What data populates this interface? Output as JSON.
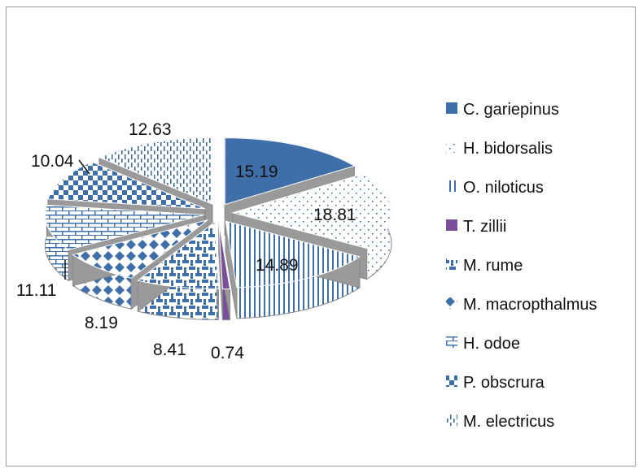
{
  "chart_data": {
    "type": "pie",
    "title": "",
    "style": "exploded-3d-patterned",
    "legend_position": "right",
    "data_labels": true,
    "slices": [
      {
        "name": "C. gariepinus",
        "value": 15.19,
        "color": "#3f6fa8",
        "pattern": "solid"
      },
      {
        "name": "H. bidorsalis",
        "value": 18.81,
        "color": "#3f6fa8",
        "pattern": "sparse-dots"
      },
      {
        "name": "O. niloticus",
        "value": 14.89,
        "color": "#3f6fa8",
        "pattern": "vertical-lines"
      },
      {
        "name": "T. zillii",
        "value": 0.74,
        "color": "#7a4f9a",
        "pattern": "solid"
      },
      {
        "name": "M. rume",
        "value": 8.41,
        "color": "#3f6fa8",
        "pattern": "weave"
      },
      {
        "name": "M. macropthalmus",
        "value": 8.19,
        "color": "#3f6fa8",
        "pattern": "diamonds"
      },
      {
        "name": "H. odoe",
        "value": 11.11,
        "color": "#3f6fa8",
        "pattern": "bricks"
      },
      {
        "name": "P. obscrura",
        "value": 10.04,
        "color": "#3f6fa8",
        "pattern": "checker"
      },
      {
        "name": "M. electricus",
        "value": 12.63,
        "color": "#3f6fa8",
        "pattern": "dashed-vertical"
      }
    ]
  }
}
